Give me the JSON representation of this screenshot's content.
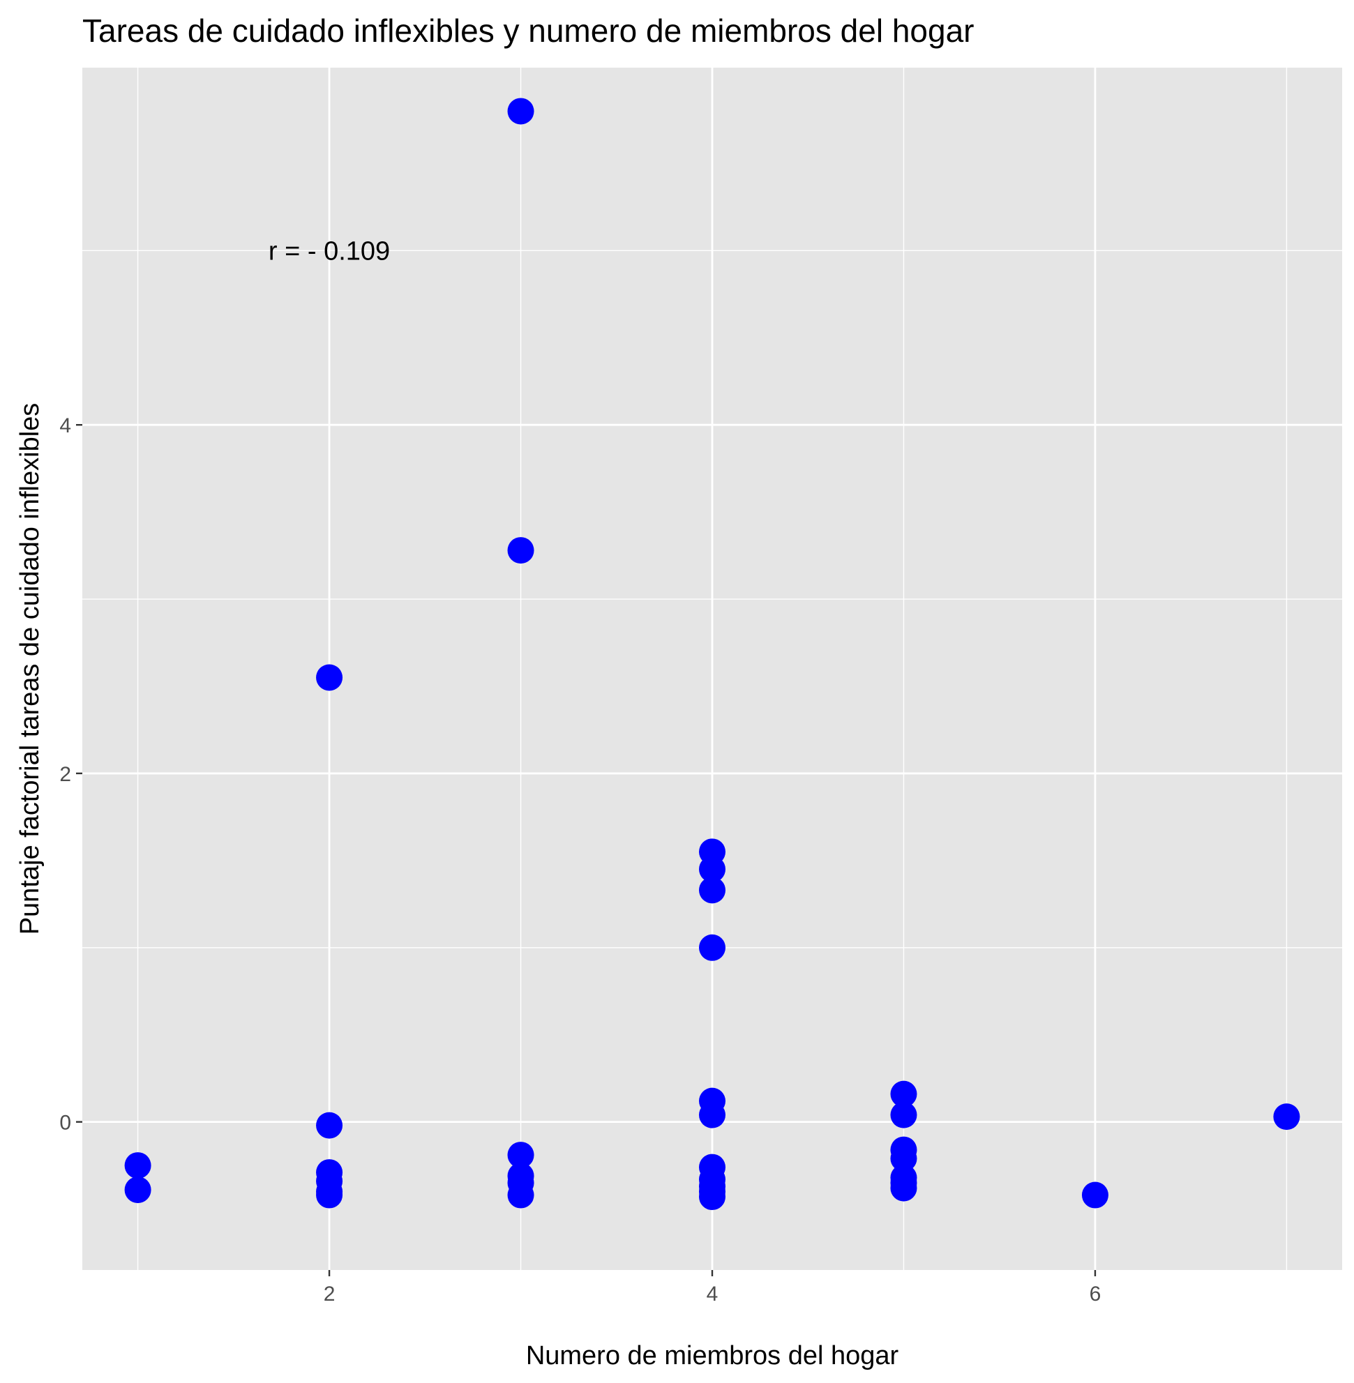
{
  "chart_data": {
    "type": "scatter",
    "title": "Tareas de cuidado inflexibles y numero de miembros del hogar",
    "xlabel": "Numero de miembros del hogar",
    "ylabel": "Puntaje factorial tareas de cuidado inflexibles",
    "xlim": [
      0.71,
      7.29
    ],
    "ylim": [
      -0.85,
      6.05
    ],
    "x_ticks": [
      2,
      4,
      6
    ],
    "x_tick_labels": [
      "2",
      "4",
      "6"
    ],
    "y_ticks": [
      0,
      2,
      4
    ],
    "y_tick_labels": [
      "0",
      "2",
      "4"
    ],
    "x_minor_grid": [
      1,
      3,
      5,
      7
    ],
    "y_minor_grid": [
      1,
      3,
      5
    ],
    "grid": true,
    "background": "#E5E5E5",
    "gridline_color": "#FFFFFF",
    "point_color": "#0000FF",
    "annotation": {
      "text": "r = - 0.109",
      "x": 2.0,
      "y": 5.0
    },
    "points": [
      {
        "x": 1,
        "y": -0.25
      },
      {
        "x": 1,
        "y": -0.39
      },
      {
        "x": 2,
        "y": 2.55
      },
      {
        "x": 2,
        "y": -0.02
      },
      {
        "x": 2,
        "y": -0.29
      },
      {
        "x": 2,
        "y": -0.34
      },
      {
        "x": 2,
        "y": -0.4
      },
      {
        "x": 2,
        "y": -0.42
      },
      {
        "x": 3,
        "y": 5.8
      },
      {
        "x": 3,
        "y": 3.28
      },
      {
        "x": 3,
        "y": -0.19
      },
      {
        "x": 3,
        "y": -0.31
      },
      {
        "x": 3,
        "y": -0.35
      },
      {
        "x": 3,
        "y": -0.42
      },
      {
        "x": 4,
        "y": 1.55
      },
      {
        "x": 4,
        "y": 1.45
      },
      {
        "x": 4,
        "y": 1.33
      },
      {
        "x": 4,
        "y": 1.0
      },
      {
        "x": 4,
        "y": 0.12
      },
      {
        "x": 4,
        "y": 0.04
      },
      {
        "x": 4,
        "y": -0.26
      },
      {
        "x": 4,
        "y": -0.33
      },
      {
        "x": 4,
        "y": -0.37
      },
      {
        "x": 4,
        "y": -0.4
      },
      {
        "x": 4,
        "y": -0.43
      },
      {
        "x": 5,
        "y": 0.16
      },
      {
        "x": 5,
        "y": 0.04
      },
      {
        "x": 5,
        "y": -0.16
      },
      {
        "x": 5,
        "y": -0.21
      },
      {
        "x": 5,
        "y": -0.32
      },
      {
        "x": 5,
        "y": -0.35
      },
      {
        "x": 5,
        "y": -0.38
      },
      {
        "x": 6,
        "y": -0.42
      },
      {
        "x": 7,
        "y": 0.03
      }
    ]
  }
}
